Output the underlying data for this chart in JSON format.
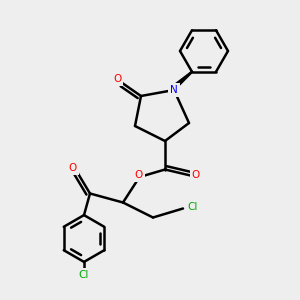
{
  "bg_color": "#eeeeee",
  "line_color": "#000000",
  "bond_width": 1.8,
  "atom_colors": {
    "O": "#ff0000",
    "N": "#0000ff",
    "Cl": "#00aa00",
    "C": "#000000"
  }
}
